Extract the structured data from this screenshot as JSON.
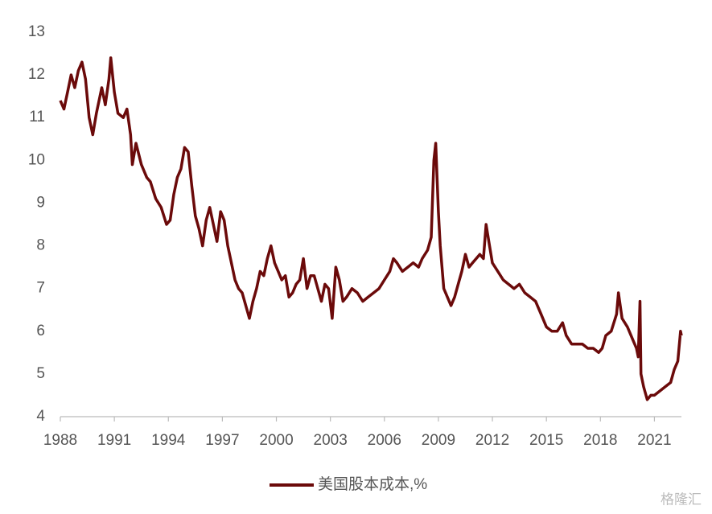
{
  "chart_data": {
    "type": "line",
    "x": [
      1988.0,
      1988.2,
      1988.4,
      1988.6,
      1988.8,
      1989.0,
      1989.2,
      1989.4,
      1989.6,
      1989.8,
      1990.0,
      1990.3,
      1990.5,
      1990.7,
      1990.8,
      1991.0,
      1991.2,
      1991.5,
      1991.7,
      1991.9,
      1992.0,
      1992.2,
      1992.5,
      1992.8,
      1993.0,
      1993.3,
      1993.6,
      1993.9,
      1994.1,
      1994.3,
      1994.5,
      1994.7,
      1994.9,
      1995.1,
      1995.3,
      1995.5,
      1995.7,
      1995.9,
      1996.1,
      1996.3,
      1996.5,
      1996.7,
      1996.9,
      1997.1,
      1997.3,
      1997.5,
      1997.7,
      1997.9,
      1998.1,
      1998.3,
      1998.5,
      1998.7,
      1998.9,
      1999.1,
      1999.3,
      1999.5,
      1999.7,
      1999.9,
      2000.1,
      2000.3,
      2000.5,
      2000.7,
      2000.9,
      2001.1,
      2001.3,
      2001.5,
      2001.7,
      2001.9,
      2002.1,
      2002.3,
      2002.5,
      2002.7,
      2002.9,
      2003.1,
      2003.3,
      2003.5,
      2003.7,
      2003.9,
      2004.2,
      2004.5,
      2004.8,
      2005.1,
      2005.4,
      2005.7,
      2006.0,
      2006.3,
      2006.5,
      2006.7,
      2007.0,
      2007.3,
      2007.6,
      2007.9,
      2008.1,
      2008.4,
      2008.6,
      2008.75,
      2008.85,
      2009.0,
      2009.1,
      2009.3,
      2009.5,
      2009.7,
      2009.9,
      2010.1,
      2010.3,
      2010.5,
      2010.7,
      2010.9,
      2011.1,
      2011.3,
      2011.5,
      2011.65,
      2011.8,
      2012.0,
      2012.3,
      2012.6,
      2012.9,
      2013.2,
      2013.5,
      2013.8,
      2014.1,
      2014.4,
      2014.7,
      2015.0,
      2015.3,
      2015.6,
      2015.9,
      2016.1,
      2016.4,
      2016.7,
      2017.0,
      2017.3,
      2017.6,
      2017.9,
      2018.1,
      2018.3,
      2018.6,
      2018.9,
      2019.0,
      2019.2,
      2019.5,
      2019.8,
      2020.0,
      2020.1,
      2020.2,
      2020.25,
      2020.4,
      2020.6,
      2020.8,
      2021.0,
      2021.3,
      2021.6,
      2021.9,
      2022.1,
      2022.3,
      2022.45,
      2022.5
    ],
    "series": [
      {
        "name": "美国股本成本,%",
        "color": "#6b0a0a",
        "values": [
          11.4,
          11.2,
          11.6,
          12.0,
          11.7,
          12.1,
          12.3,
          11.9,
          11.0,
          10.6,
          11.1,
          11.7,
          11.3,
          11.9,
          12.4,
          11.6,
          11.1,
          11.0,
          11.2,
          10.6,
          9.9,
          10.4,
          9.9,
          9.6,
          9.5,
          9.1,
          8.9,
          8.5,
          8.6,
          9.2,
          9.6,
          9.8,
          10.3,
          10.2,
          9.4,
          8.7,
          8.4,
          8.0,
          8.6,
          8.9,
          8.5,
          8.1,
          8.8,
          8.6,
          8.0,
          7.6,
          7.2,
          7.0,
          6.9,
          6.6,
          6.3,
          6.7,
          7.0,
          7.4,
          7.3,
          7.7,
          8.0,
          7.6,
          7.4,
          7.2,
          7.3,
          6.8,
          6.9,
          7.1,
          7.2,
          7.7,
          7.0,
          7.3,
          7.3,
          7.0,
          6.7,
          7.1,
          7.0,
          6.3,
          7.5,
          7.2,
          6.7,
          6.8,
          7.0,
          6.9,
          6.7,
          6.8,
          6.9,
          7.0,
          7.2,
          7.4,
          7.7,
          7.6,
          7.4,
          7.5,
          7.6,
          7.5,
          7.7,
          7.9,
          8.2,
          10.0,
          10.4,
          8.8,
          8.0,
          7.0,
          6.8,
          6.6,
          6.8,
          7.1,
          7.4,
          7.8,
          7.5,
          7.6,
          7.7,
          7.8,
          7.7,
          8.5,
          8.1,
          7.6,
          7.4,
          7.2,
          7.1,
          7.0,
          7.1,
          6.9,
          6.8,
          6.7,
          6.4,
          6.1,
          6.0,
          6.0,
          6.2,
          5.9,
          5.7,
          5.7,
          5.7,
          5.6,
          5.6,
          5.5,
          5.6,
          5.9,
          6.0,
          6.4,
          6.9,
          6.3,
          6.1,
          5.8,
          5.6,
          5.4,
          6.7,
          5.0,
          4.7,
          4.4,
          4.5,
          4.5,
          4.6,
          4.7,
          4.8,
          5.1,
          5.3,
          6.0,
          5.9
        ]
      }
    ],
    "xlim": [
      1988,
      2022.5
    ],
    "xticks": [
      1988,
      1991,
      1994,
      1997,
      2000,
      2003,
      2006,
      2009,
      2012,
      2015,
      2018,
      2021
    ],
    "ylim": [
      4,
      13
    ],
    "yticks": [
      4,
      5,
      6,
      7,
      8,
      9,
      10,
      11,
      12,
      13
    ],
    "grid": false,
    "legend": "bottom",
    "watermark": "格隆汇"
  }
}
